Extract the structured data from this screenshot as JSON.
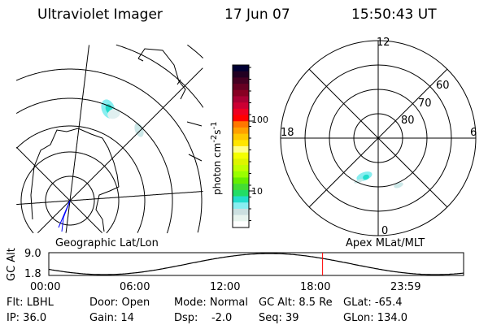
{
  "header": {
    "title": "Ultraviolet Imager",
    "date": "17 Jun 07",
    "time": "15:50:43 UT"
  },
  "colorbar": {
    "label": "photon cm",
    "label_sup1": "-2",
    "label_mid": "s",
    "label_sup2": "-1",
    "ticks": [
      "100",
      "10"
    ],
    "colors": [
      "#000033",
      "#220022",
      "#440022",
      "#660022",
      "#880022",
      "#aa0033",
      "#cc0033",
      "#ee0022",
      "#ff0000",
      "#ff7700",
      "#ffa000",
      "#ffc800",
      "#ffe600",
      "#ffff88",
      "#f4ff00",
      "#ddf500",
      "#c0ff00",
      "#99ff00",
      "#66ee00",
      "#44dd33",
      "#22dd66",
      "#22ddcc",
      "#88eef0",
      "#cce0e0",
      "#e8f4ee",
      "#ffffff"
    ]
  },
  "polar": {
    "mlt_labels": {
      "top": "12",
      "right": "6",
      "left": "18",
      "bottom": "0"
    },
    "lat_labels": [
      "60",
      "70",
      "80"
    ]
  },
  "plot_titles": {
    "left": "Geographic Lat/Lon",
    "right": "Apex MLat/MLT"
  },
  "altitude": {
    "ylabel": "GC Alt",
    "yticks": [
      "9.0",
      "1.8"
    ],
    "xticks": [
      "00:00",
      "06:00",
      "12:00",
      "18:00",
      "23:59"
    ],
    "current_marker_color": "#ff0000",
    "current_time_fraction": 0.66
  },
  "status": [
    [
      "Flt: LBHL",
      "IP: 36.0"
    ],
    [
      "Door: Open",
      "Gain: 14"
    ],
    [
      "Mode: Normal",
      "Dsp:    -2.0"
    ],
    [
      "GC Alt: 8.5 Re",
      "Seq: 39"
    ],
    [
      "GLat: -65.4",
      "GLon: 134.0"
    ]
  ]
}
